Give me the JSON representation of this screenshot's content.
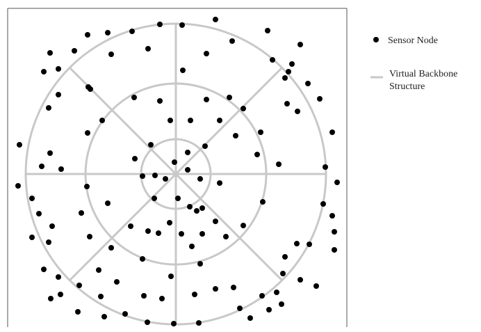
{
  "legend": {
    "sensor_node_label": "Sensor Node",
    "backbone_label_line1": "Virtual  Backbone",
    "backbone_label_line2": "Structure"
  },
  "colors": {
    "node": "#000000",
    "backbone": "#c8c8c8",
    "frame": "#555555",
    "text": "#222222"
  },
  "backbone": {
    "rings": 3,
    "radial_spokes": 8
  },
  "sensor_nodes": {
    "count": 128
  }
}
